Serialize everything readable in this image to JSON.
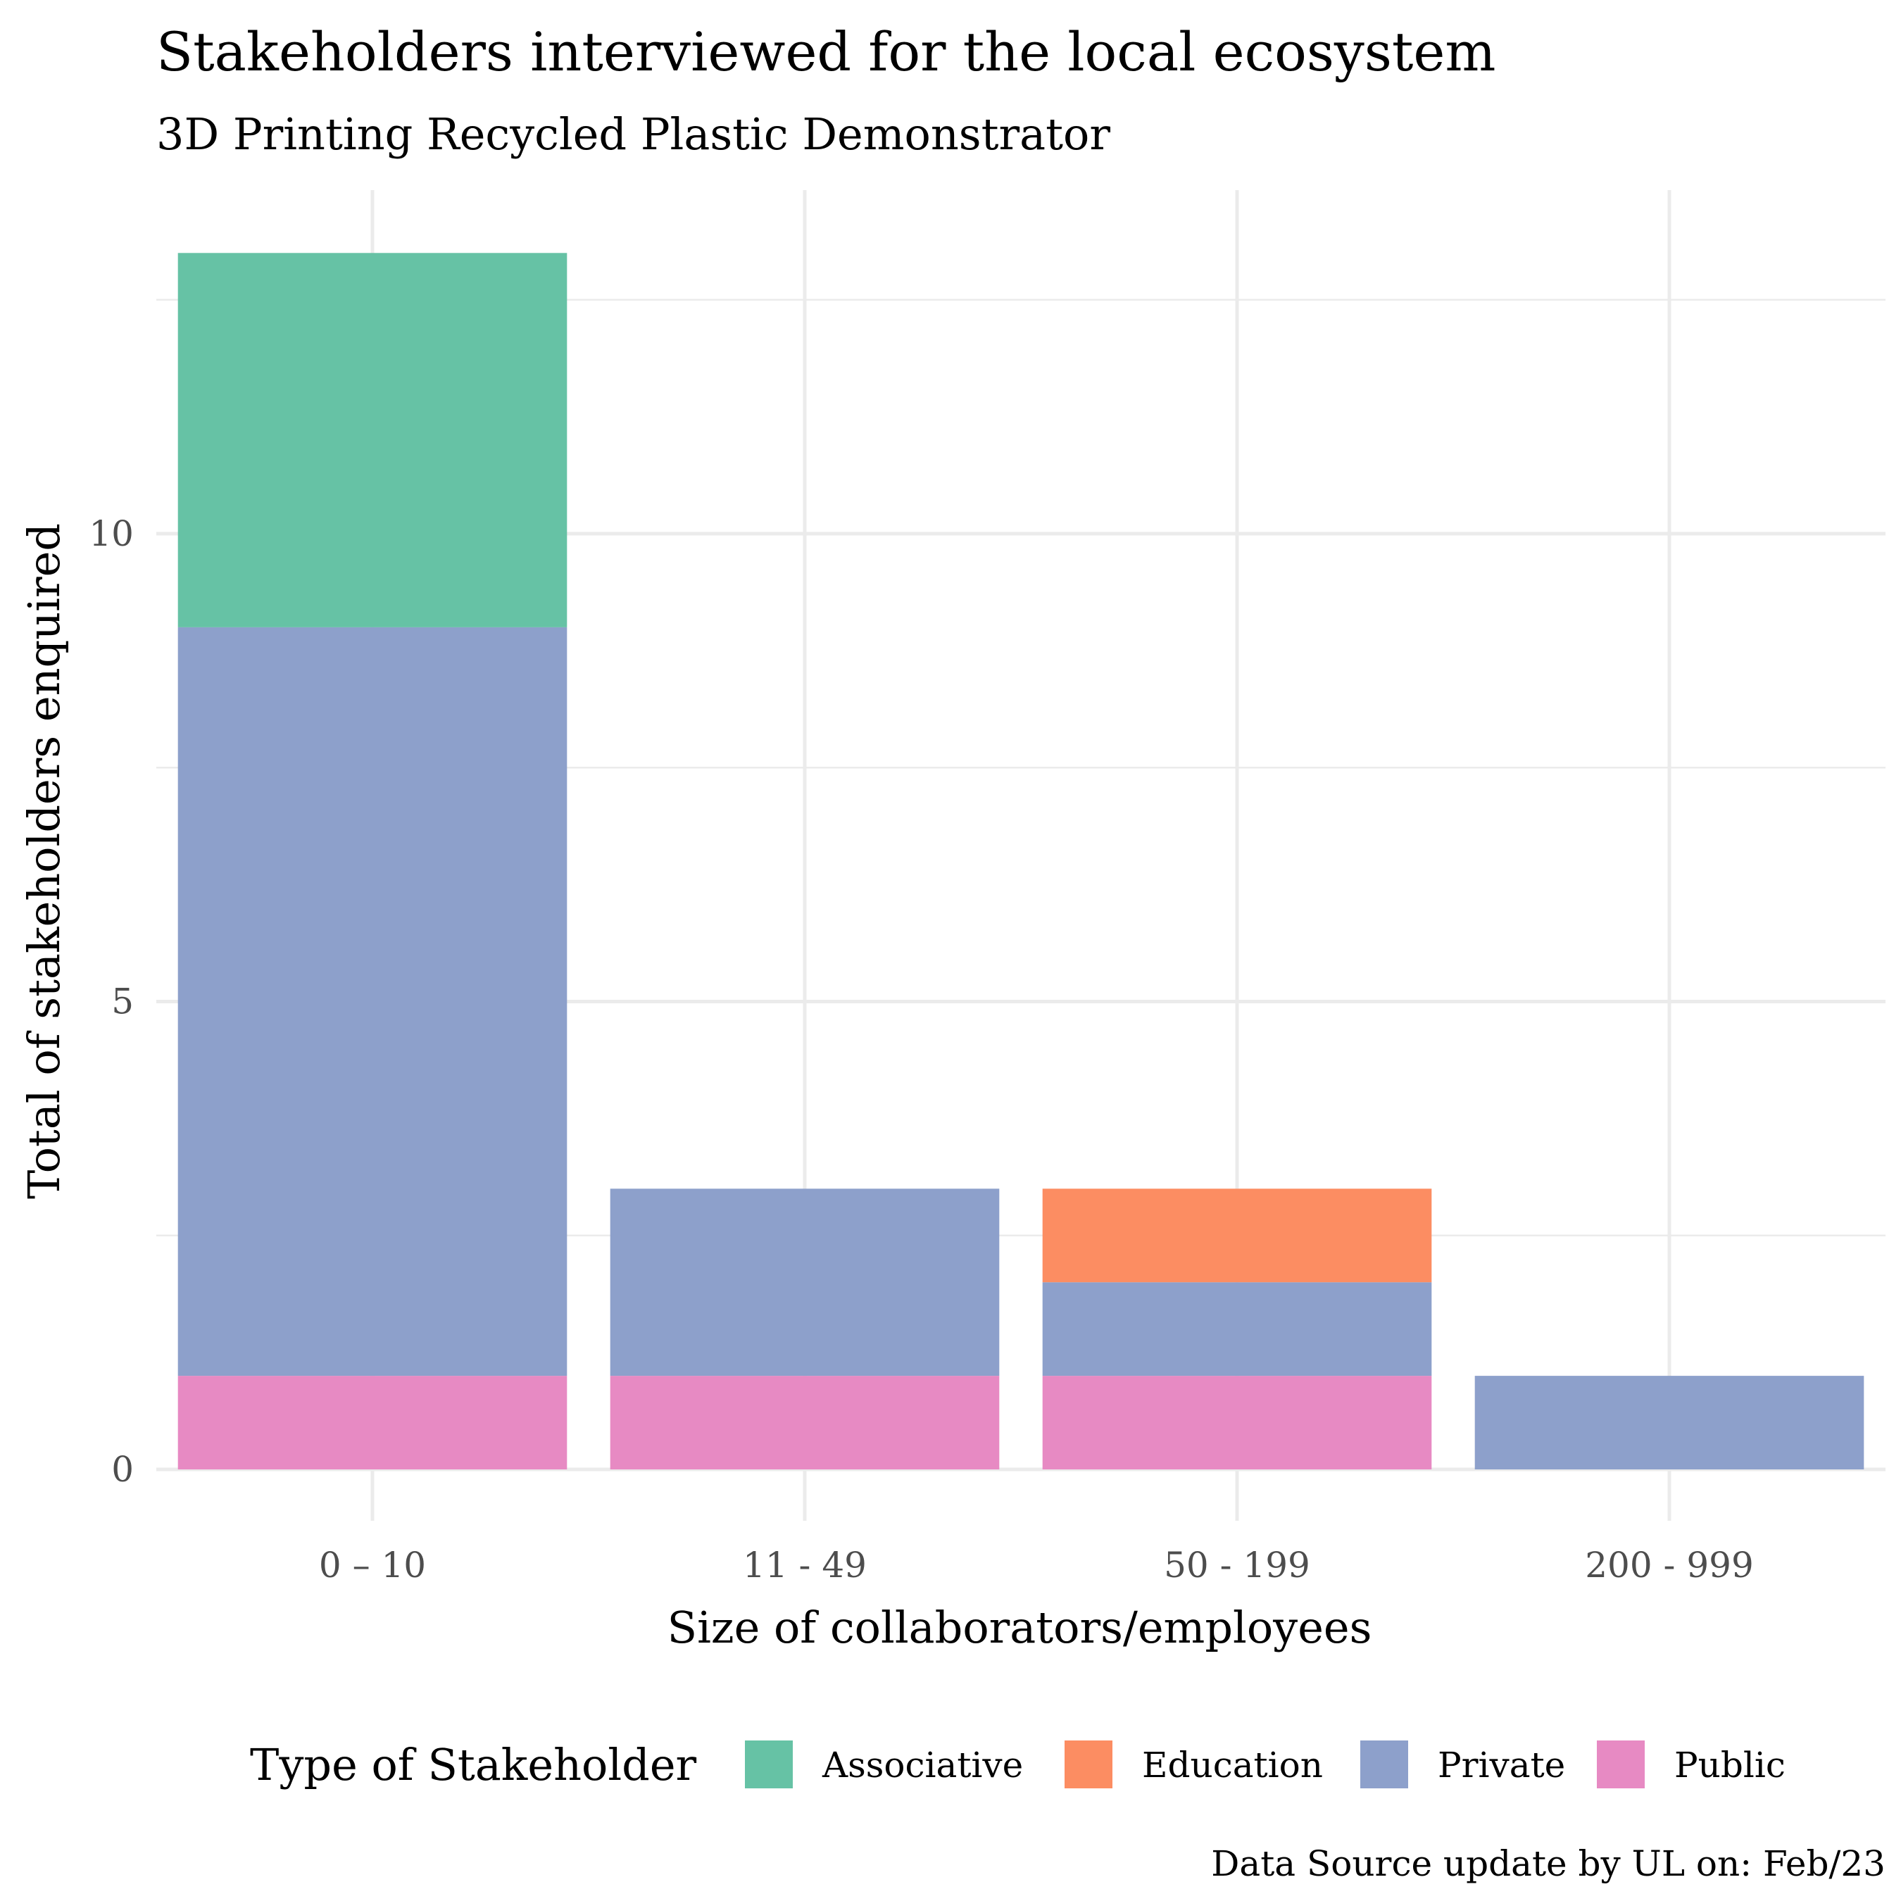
{
  "chart_data": {
    "type": "bar",
    "stacked": true,
    "title": "Stakeholders interviewed for the local ecosystem",
    "subtitle": "3D Printing Recycled Plastic Demonstrator",
    "xlabel": "Size of collaborators/employees",
    "ylabel": "Total of stakeholders enquired",
    "categories": [
      "0 – 10",
      "11 - 49",
      "50 - 199",
      "200 - 999"
    ],
    "ylim": [
      0,
      13.2
    ],
    "yticks": [
      0,
      5,
      10
    ],
    "grid": true,
    "legend": {
      "title": "Type of Stakeholder",
      "placement": "bottom"
    },
    "series": [
      {
        "name": "Public",
        "color": "#E78AC3",
        "values": [
          1,
          1,
          1,
          0
        ]
      },
      {
        "name": "Private",
        "color": "#8DA0CB",
        "values": [
          8,
          2,
          1,
          1
        ]
      },
      {
        "name": "Education",
        "color": "#FC8D62",
        "values": [
          0,
          0,
          1,
          0
        ]
      },
      {
        "name": "Associative",
        "color": "#66C2A5",
        "values": [
          4,
          0,
          0,
          0
        ]
      }
    ],
    "legend_order": [
      "Associative",
      "Education",
      "Private",
      "Public"
    ],
    "caption": "Data Source update by UL on:  Feb/23"
  }
}
